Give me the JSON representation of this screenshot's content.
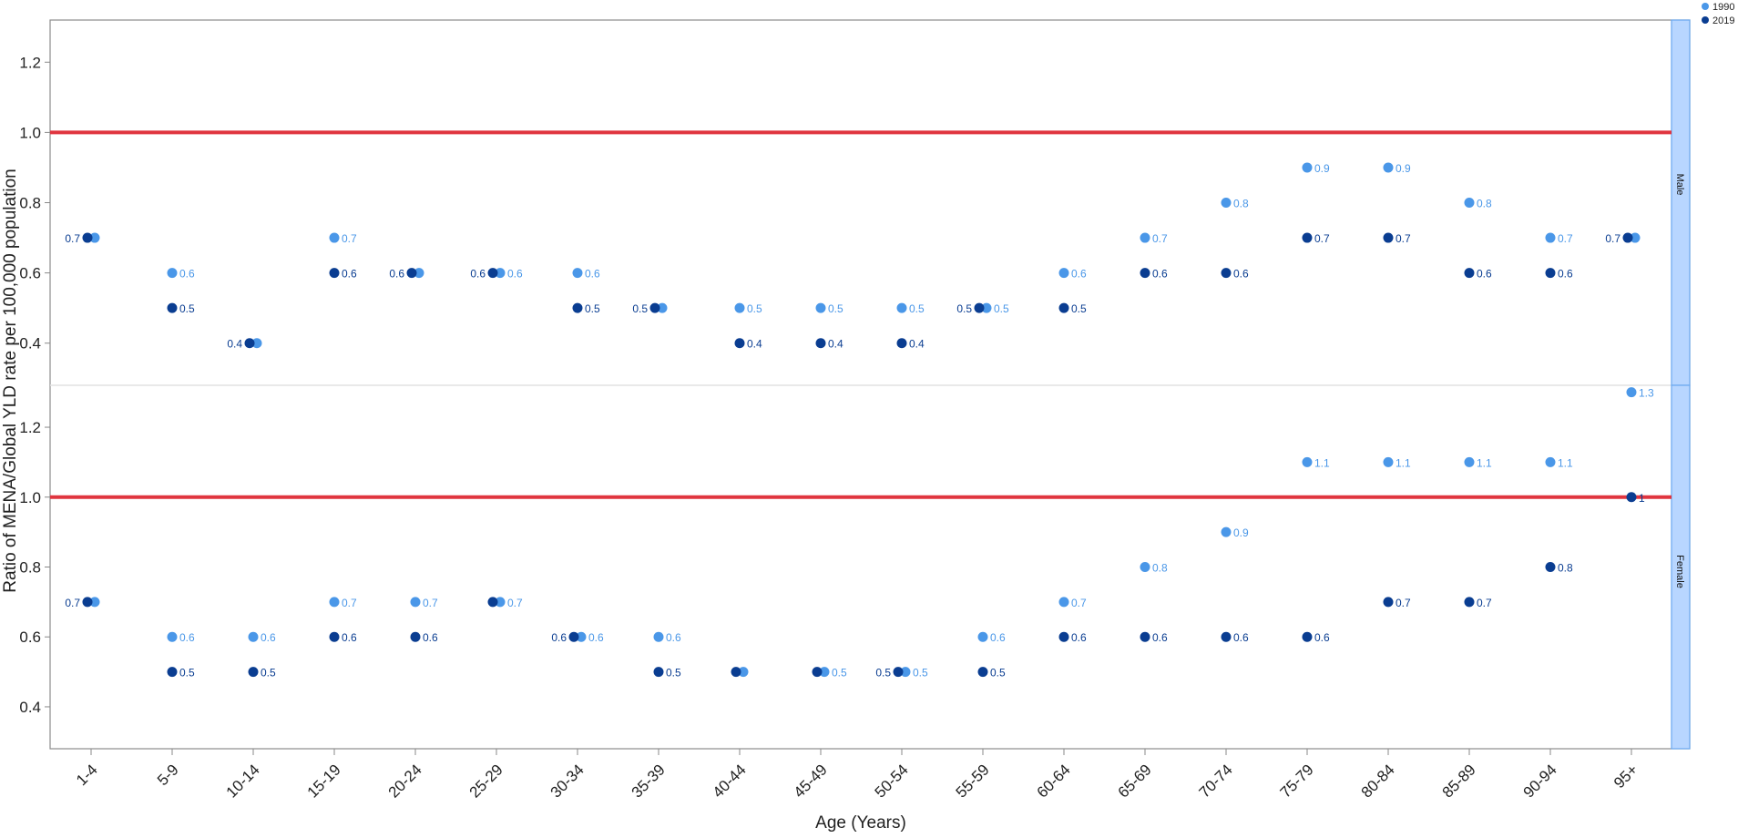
{
  "chart_data": {
    "type": "scatter",
    "xlabel": "Age (Years)",
    "ylabel": "Ratio of MENA/Global YLD rate per 100,000 population",
    "categories": [
      "1-4",
      "5-9",
      "10-14",
      "15-19",
      "20-24",
      "25-29",
      "30-34",
      "35-39",
      "40-44",
      "45-49",
      "50-54",
      "55-59",
      "60-64",
      "65-69",
      "70-74",
      "75-79",
      "80-84",
      "85-89",
      "90-94",
      "95+"
    ],
    "ylim": [
      0.28,
      1.32
    ],
    "yticks": [
      0.4,
      0.6,
      0.8,
      1.0,
      1.2
    ],
    "reference_line": 1.0,
    "colors": {
      "1990": "#4a97e8",
      "2019": "#0a3d91",
      "reference": "#e0353f",
      "strip_fill": "#b8d6ff",
      "strip_border": "#6aa8f0"
    },
    "legend": {
      "position": "top-right",
      "entries": [
        {
          "name": "1990",
          "color": "#4a97e8"
        },
        {
          "name": "2019",
          "color": "#0a3d91"
        }
      ]
    },
    "panels": [
      {
        "strip": "Male",
        "series": [
          {
            "name": "1990",
            "values": [
              0.7,
              0.6,
              0.4,
              0.7,
              0.6,
              0.6,
              0.6,
              0.5,
              0.5,
              0.5,
              0.5,
              0.5,
              0.6,
              0.7,
              0.8,
              0.9,
              0.9,
              0.8,
              0.7,
              0.7
            ],
            "labels": [
              "",
              "0.6",
              "",
              "0.7",
              "",
              "0.6",
              "0.6",
              "",
              "0.5",
              "0.5",
              "0.5",
              "0.5",
              "0.6",
              "0.7",
              "0.8",
              "0.9",
              "0.9",
              "0.8",
              "0.7",
              ""
            ]
          },
          {
            "name": "2019",
            "values": [
              0.7,
              0.5,
              0.4,
              0.6,
              0.6,
              0.6,
              0.5,
              0.5,
              0.4,
              0.4,
              0.4,
              0.5,
              0.5,
              0.6,
              0.6,
              0.7,
              0.7,
              0.6,
              0.6,
              0.7
            ],
            "labels": [
              "0.7",
              "0.5",
              "0.4",
              "0.6",
              "0.6",
              "0.6",
              "0.5",
              "0.5",
              "0.4",
              "0.4",
              "0.4",
              "0.5",
              "0.5",
              "0.6",
              "0.6",
              "0.7",
              "0.7",
              "0.6",
              "0.6",
              "0.7"
            ]
          }
        ]
      },
      {
        "strip": "Female",
        "series": [
          {
            "name": "1990",
            "values": [
              0.7,
              0.6,
              0.6,
              0.7,
              0.7,
              0.7,
              0.6,
              0.6,
              0.5,
              0.5,
              0.5,
              0.6,
              0.7,
              0.8,
              0.9,
              1.1,
              1.1,
              1.1,
              1.1,
              1.3
            ],
            "labels": [
              "",
              "0.6",
              "0.6",
              "0.7",
              "0.7",
              "0.7",
              "0.6",
              "0.6",
              "",
              "0.5",
              "0.5",
              "0.6",
              "0.7",
              "0.8",
              "0.9",
              "1.1",
              "1.1",
              "1.1",
              "1.1",
              "1.3"
            ]
          },
          {
            "name": "2019",
            "values": [
              0.7,
              0.5,
              0.5,
              0.6,
              0.6,
              0.7,
              0.6,
              0.5,
              0.5,
              0.5,
              0.5,
              0.5,
              0.6,
              0.6,
              0.6,
              0.6,
              0.7,
              0.7,
              0.8,
              1.0
            ],
            "labels": [
              "0.7",
              "0.5",
              "0.5",
              "0.6",
              "0.6",
              "",
              "0.6",
              "0.5",
              "",
              "",
              "0.5",
              "0.5",
              "0.6",
              "0.6",
              "0.6",
              "0.6",
              "0.7",
              "0.7",
              "0.8",
              "1"
            ]
          }
        ]
      }
    ]
  }
}
